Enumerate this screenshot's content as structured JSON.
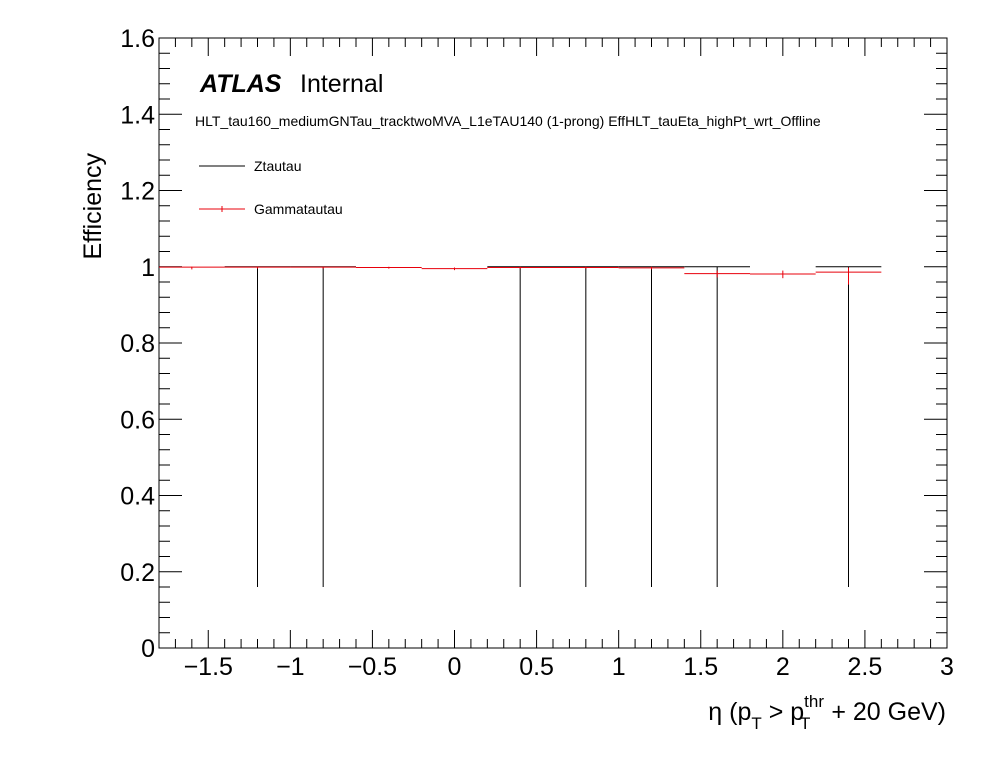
{
  "labels": {
    "atlas": "ATLAS",
    "internal": "Internal",
    "subtitle": "HLT_tau160_mediumGNTau_tracktwoMVA_L1eTAU140 (1-prong) EffHLT_tauEta_highPt_wrt_Offline",
    "ylabel": "Efficiency",
    "xlabel_eta": "η",
    "xlabel_open": " (p",
    "xlabel_sub1": "T",
    "xlabel_gt": " > p",
    "xlabel_sup": "thr",
    "xlabel_sub2": "T",
    "xlabel_rest": " + 20 GeV)"
  },
  "chart_data": {
    "type": "scatter",
    "title": "",
    "xlabel": "η (p_T > p_T^thr + 20 GeV)",
    "ylabel": "Efficiency",
    "xlim": [
      -1.8,
      3.0
    ],
    "ylim": [
      0,
      1.6
    ],
    "xticks": [
      -1.5,
      -1,
      -0.5,
      0,
      0.5,
      1,
      1.5,
      2,
      2.5,
      3
    ],
    "xtick_labels": [
      "−1.5",
      "−1",
      "−0.5",
      "0",
      "0.5",
      "1",
      "1.5",
      "2",
      "2.5",
      "3"
    ],
    "yticks": [
      0,
      0.2,
      0.4,
      0.6,
      0.8,
      1.0,
      1.2,
      1.4,
      1.6
    ],
    "ytick_labels": [
      "0",
      "0.2",
      "0.4",
      "0.6",
      "0.8",
      "1",
      "1.2",
      "1.4",
      "1.6"
    ],
    "legend_position": "top-left",
    "series": [
      {
        "name": "Ztautau",
        "color": "#000000",
        "points": [
          {
            "x0": -1.4,
            "x1": -1.0,
            "y": 1.0,
            "ylo": 0.16,
            "yhi": 1.0
          },
          {
            "x0": -1.0,
            "x1": -0.6,
            "y": 1.0,
            "ylo": 0.16,
            "yhi": 1.0
          },
          {
            "x0": 0.2,
            "x1": 0.6,
            "y": 1.0,
            "ylo": 0.16,
            "yhi": 1.0
          },
          {
            "x0": 0.6,
            "x1": 1.0,
            "y": 1.0,
            "ylo": 0.16,
            "yhi": 1.0
          },
          {
            "x0": 1.0,
            "x1": 1.4,
            "y": 1.0,
            "ylo": 0.16,
            "yhi": 1.0
          },
          {
            "x0": 1.4,
            "x1": 1.8,
            "y": 1.0,
            "ylo": 0.16,
            "yhi": 1.0
          },
          {
            "x0": 2.2,
            "x1": 2.6,
            "y": 1.0,
            "ylo": 0.16,
            "yhi": 1.0
          }
        ]
      },
      {
        "name": "Gammatautau",
        "color": "#e8000b",
        "points": [
          {
            "x0": -1.8,
            "x1": -1.4,
            "y": 0.999,
            "ylo": 0.993,
            "yhi": 1.0
          },
          {
            "x0": -1.4,
            "x1": -1.0,
            "y": 0.999,
            "ylo": 0.995,
            "yhi": 1.0
          },
          {
            "x0": -1.0,
            "x1": -0.6,
            "y": 0.999,
            "ylo": 0.995,
            "yhi": 1.0
          },
          {
            "x0": -0.6,
            "x1": -0.2,
            "y": 0.998,
            "ylo": 0.995,
            "yhi": 1.0
          },
          {
            "x0": -0.2,
            "x1": 0.2,
            "y": 0.995,
            "ylo": 0.991,
            "yhi": 0.998
          },
          {
            "x0": 0.2,
            "x1": 0.6,
            "y": 0.998,
            "ylo": 0.995,
            "yhi": 1.0
          },
          {
            "x0": 0.6,
            "x1": 1.0,
            "y": 0.998,
            "ylo": 0.995,
            "yhi": 1.0
          },
          {
            "x0": 1.0,
            "x1": 1.4,
            "y": 0.997,
            "ylo": 0.993,
            "yhi": 1.0
          },
          {
            "x0": 1.4,
            "x1": 1.8,
            "y": 0.982,
            "ylo": 0.972,
            "yhi": 0.99
          },
          {
            "x0": 1.8,
            "x1": 2.2,
            "y": 0.981,
            "ylo": 0.97,
            "yhi": 0.99
          },
          {
            "x0": 2.2,
            "x1": 2.6,
            "y": 0.986,
            "ylo": 0.953,
            "yhi": 0.998
          }
        ]
      }
    ]
  }
}
